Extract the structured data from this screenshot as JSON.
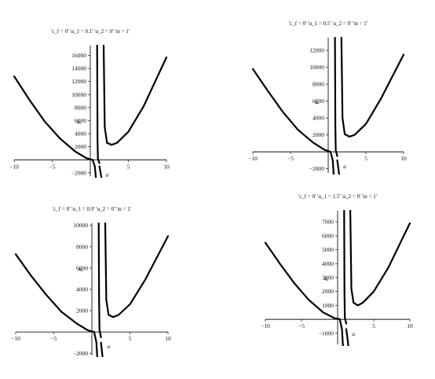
{
  "chart_data": [
    {
      "type": "line",
      "title": "'c_f = 0' 'α_1 = 0.1' 'α_2 = 0' 'm = 1'",
      "xlabel": "a",
      "ylabel": "P",
      "xlim": [
        -10,
        10
      ],
      "ylim": [
        -2500,
        17500
      ],
      "x_ticks": [
        -10,
        -5,
        5,
        10
      ],
      "y_ticks": [
        -2000,
        2000,
        4000,
        6000,
        8000,
        10000,
        12000,
        14000,
        16000
      ],
      "series": [
        {
          "x": [
            -10,
            -8,
            -6,
            -4,
            -2,
            -0.5,
            0.3,
            0.6,
            0.75
          ],
          "values": [
            12800,
            9200,
            5900,
            3300,
            1300,
            250,
            0,
            -1000,
            -3000
          ]
        },
        {
          "x": [
            0.9,
            0.95,
            1.0,
            1.2
          ],
          "values": [
            17500,
            3000,
            200,
            -500
          ]
        },
        {
          "x": [
            1.75,
            1.9,
            2.2,
            2.8,
            3.5,
            5,
            7,
            10
          ],
          "values": [
            17500,
            5000,
            2600,
            2300,
            2600,
            4300,
            8200,
            15700
          ]
        },
        {
          "x": [
            1.2,
            1.35,
            1.5
          ],
          "values": [
            -1000,
            -2000,
            -3000
          ]
        }
      ]
    },
    {
      "type": "line",
      "title": "'c_f = 0' 'α_1 = 0.5' 'α_2 = 0' 'm = 1'",
      "xlabel": "a",
      "ylabel": "P",
      "xlim": [
        -10,
        10
      ],
      "ylim": [
        -2500,
        13500
      ],
      "x_ticks": [
        -10,
        -5,
        5,
        10
      ],
      "y_ticks": [
        -2000,
        2000,
        4000,
        6000,
        8000,
        10000,
        12000
      ],
      "series": [
        {
          "x": [
            -10,
            -8,
            -6,
            -4,
            -2,
            -0.5,
            0.3,
            0.6,
            0.75
          ],
          "values": [
            9800,
            7200,
            4700,
            2600,
            1100,
            250,
            0,
            -1000,
            -3000
          ]
        },
        {
          "x": [
            0.9,
            0.95,
            1.0,
            1.2
          ],
          "values": [
            13500,
            3000,
            200,
            -500
          ]
        },
        {
          "x": [
            1.75,
            1.9,
            2.2,
            2.8,
            3.5,
            5,
            7,
            10
          ],
          "values": [
            13500,
            4000,
            2100,
            1800,
            2000,
            3300,
            6300,
            11500
          ]
        },
        {
          "x": [
            1.2,
            1.35,
            1.5
          ],
          "values": [
            -1000,
            -2000,
            -3000
          ]
        }
      ]
    },
    {
      "type": "line",
      "title": "'c_f = 0' 'α_1 = 0.9' 'α_2 = 0' 'm = 1'",
      "xlabel": "a",
      "ylabel": "P",
      "xlim": [
        -10,
        10
      ],
      "ylim": [
        -2200,
        10200
      ],
      "x_ticks": [
        -10,
        -5,
        5,
        10
      ],
      "y_ticks": [
        -2000,
        2000,
        4000,
        6000,
        8000,
        10000
      ],
      "series": [
        {
          "x": [
            -10,
            -8,
            -6,
            -4,
            -2,
            -0.5,
            0.3,
            0.6,
            0.75
          ],
          "values": [
            7300,
            5300,
            3500,
            1900,
            800,
            150,
            0,
            -1000,
            -3000
          ]
        },
        {
          "x": [
            0.9,
            0.95,
            1.0,
            1.2
          ],
          "values": [
            10200,
            3000,
            200,
            -500
          ]
        },
        {
          "x": [
            1.75,
            1.9,
            2.2,
            2.8,
            3.5,
            5,
            7,
            10
          ],
          "values": [
            10200,
            3000,
            1600,
            1400,
            1600,
            2600,
            4900,
            9000
          ]
        },
        {
          "x": [
            1.2,
            1.35,
            1.5
          ],
          "values": [
            -1000,
            -2000,
            -3000
          ]
        }
      ]
    },
    {
      "type": "line",
      "title": "'c_f = 0' 'α_1 = 1.5' 'α_2 = 0' 'm = 1'",
      "xlabel": "a",
      "ylabel": "P",
      "xlim": [
        -10,
        10
      ],
      "ylim": [
        -1800,
        7800
      ],
      "x_ticks": [
        -10,
        -5,
        5,
        10
      ],
      "y_ticks": [
        -1000,
        1000,
        2000,
        3000,
        4000,
        5000,
        6000,
        7000
      ],
      "series": [
        {
          "x": [
            -10,
            -8,
            -6,
            -4,
            -2,
            -0.5,
            0.3,
            0.6,
            0.75
          ],
          "values": [
            5500,
            4000,
            2600,
            1400,
            500,
            100,
            0,
            -700,
            -2000
          ]
        },
        {
          "x": [
            0.9,
            0.95,
            1.0,
            1.2
          ],
          "values": [
            7800,
            2000,
            100,
            -300
          ]
        },
        {
          "x": [
            1.75,
            1.9,
            2.2,
            2.8,
            3.5,
            5,
            7,
            10
          ],
          "values": [
            7800,
            2200,
            1200,
            1000,
            1200,
            2000,
            3700,
            6900
          ]
        },
        {
          "x": [
            1.2,
            1.35,
            1.5
          ],
          "values": [
            -700,
            -1300,
            -2000
          ]
        }
      ]
    }
  ]
}
